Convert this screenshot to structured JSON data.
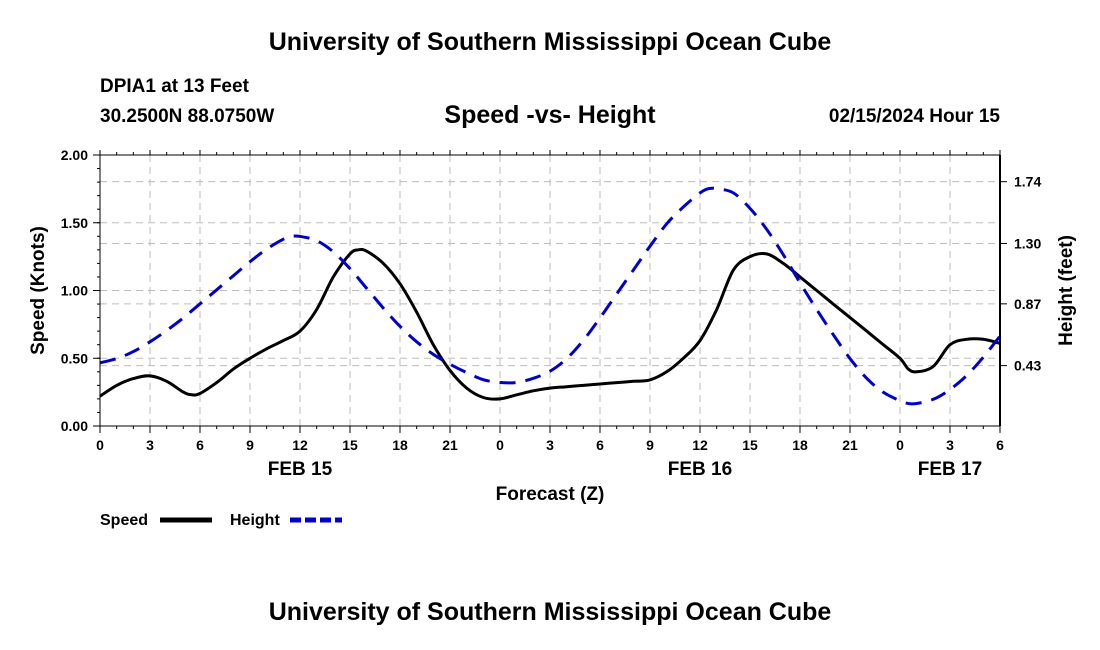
{
  "page": {
    "title": "University of Southern Mississippi Ocean Cube",
    "station": "DPIA1 at 13 Feet",
    "coordinates": "30.2500N  88.0750W",
    "datetime": "02/15/2024 Hour 15",
    "footer_title": "University of Southern Mississippi Ocean Cube"
  },
  "chart_data": {
    "type": "line",
    "title": "Speed -vs- Height",
    "xlabel": "Forecast (Z)",
    "ylabel": "Speed (Knots)",
    "y2label": "Height (feet)",
    "grid": true,
    "x_range": [
      0,
      54
    ],
    "x_ticks": [
      0,
      3,
      6,
      9,
      12,
      15,
      18,
      21,
      24,
      27,
      30,
      33,
      36,
      39,
      42,
      45,
      48,
      51,
      54
    ],
    "x_tick_labels": [
      "0",
      "3",
      "6",
      "9",
      "12",
      "15",
      "18",
      "21",
      "0",
      "3",
      "6",
      "9",
      "12",
      "15",
      "18",
      "21",
      "0",
      "3",
      "6"
    ],
    "date_labels": [
      {
        "x": 12,
        "label": "FEB 15"
      },
      {
        "x": 36,
        "label": "FEB 16"
      },
      {
        "x": 51,
        "label": "FEB 17"
      }
    ],
    "ylim": [
      0,
      2
    ],
    "y_ticks": [
      0,
      0.5,
      1,
      1.5,
      2
    ],
    "y_tick_labels": [
      "0.00",
      "0.50",
      "1.00",
      "1.50",
      "2.00"
    ],
    "y2lim": [
      0,
      1.93
    ],
    "y2_ticks": [
      0.43,
      0.87,
      1.3,
      1.74
    ],
    "y2_tick_labels": [
      "0.43",
      "0.87",
      "1.30",
      "1.74"
    ],
    "series": [
      {
        "name": "Speed",
        "axis": "left",
        "color": "#000000",
        "dash": "solid",
        "x": [
          0,
          1,
          2,
          3,
          4,
          5,
          5.5,
          6,
          7,
          8,
          9,
          10,
          11,
          12,
          13,
          14,
          15,
          15.5,
          16,
          17,
          18,
          19,
          20,
          21,
          22,
          23,
          24,
          25,
          26,
          27,
          28,
          29,
          30,
          31,
          32,
          33,
          34,
          35,
          36,
          37,
          38,
          39,
          40,
          41,
          42,
          43,
          44,
          45,
          46,
          47,
          48,
          48.5,
          49,
          50,
          51,
          52,
          53,
          54
        ],
        "y": [
          0.22,
          0.3,
          0.35,
          0.37,
          0.33,
          0.25,
          0.23,
          0.24,
          0.32,
          0.42,
          0.5,
          0.57,
          0.63,
          0.7,
          0.86,
          1.1,
          1.27,
          1.3,
          1.29,
          1.2,
          1.05,
          0.84,
          0.6,
          0.41,
          0.28,
          0.21,
          0.2,
          0.23,
          0.26,
          0.28,
          0.29,
          0.3,
          0.31,
          0.32,
          0.33,
          0.34,
          0.4,
          0.5,
          0.63,
          0.86,
          1.15,
          1.25,
          1.27,
          1.2,
          1.1,
          1.0,
          0.9,
          0.8,
          0.7,
          0.6,
          0.5,
          0.42,
          0.4,
          0.44,
          0.6,
          0.64,
          0.64,
          0.61
        ]
      },
      {
        "name": "Height",
        "axis": "right",
        "color": "#0000cc",
        "dash": "dashed",
        "x": [
          0,
          1,
          2,
          3,
          4,
          5,
          6,
          7,
          8,
          9,
          10,
          11,
          11.5,
          12,
          13,
          14,
          15,
          16,
          17,
          18,
          19,
          20,
          21,
          22,
          23,
          24,
          25,
          26,
          27,
          28,
          29,
          30,
          31,
          32,
          33,
          34,
          35,
          36,
          36.5,
          37,
          38,
          39,
          40,
          41,
          42,
          43,
          44,
          45,
          46,
          47,
          48,
          48.5,
          49,
          50,
          51,
          52,
          53,
          54
        ],
        "y": [
          0.45,
          0.48,
          0.53,
          0.6,
          0.68,
          0.77,
          0.87,
          0.97,
          1.07,
          1.17,
          1.26,
          1.33,
          1.35,
          1.35,
          1.32,
          1.24,
          1.12,
          0.98,
          0.84,
          0.71,
          0.6,
          0.51,
          0.44,
          0.38,
          0.33,
          0.31,
          0.31,
          0.34,
          0.39,
          0.48,
          0.61,
          0.77,
          0.94,
          1.11,
          1.28,
          1.44,
          1.56,
          1.66,
          1.69,
          1.69,
          1.66,
          1.55,
          1.4,
          1.22,
          1.02,
          0.83,
          0.65,
          0.48,
          0.34,
          0.24,
          0.18,
          0.16,
          0.16,
          0.19,
          0.26,
          0.36,
          0.49,
          0.64
        ]
      }
    ],
    "legend_placement": "bottom-left"
  }
}
